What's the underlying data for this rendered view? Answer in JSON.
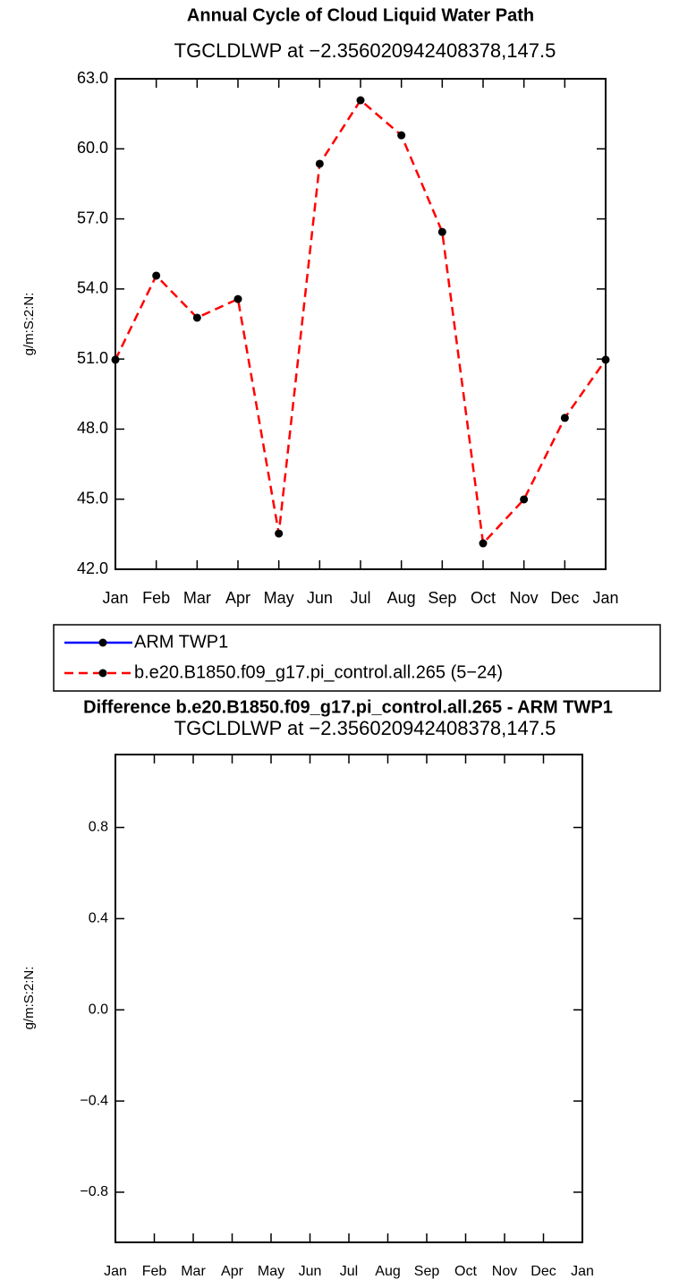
{
  "chart_data": [
    {
      "type": "line",
      "title": "Annual Cycle of Cloud Liquid Water Path",
      "subtitle": "TGCLDLWP at −2.356020942408378,147.5",
      "y_label": "g/m:S:2:N:",
      "categories": [
        "Jan",
        "Feb",
        "Mar",
        "Apr",
        "May",
        "Jun",
        "Jul",
        "Aug",
        "Sep",
        "Oct",
        "Nov",
        "Dec",
        "Jan"
      ],
      "series": [
        {
          "name": "ARM TWP1",
          "color": "#0000ff",
          "values": [
            null,
            null,
            null,
            null,
            null,
            null,
            null,
            null,
            null,
            null,
            null,
            null,
            null
          ]
        },
        {
          "name": "b.e20.B1850.f09_g17.pi_control.all.265 (5−24)",
          "color": "#ff0000",
          "values": [
            50.97,
            54.57,
            52.77,
            53.57,
            43.53,
            59.36,
            62.08,
            60.58,
            56.44,
            43.11,
            44.99,
            48.48,
            50.97
          ]
        }
      ],
      "ylim": [
        42,
        63
      ],
      "yticks": [
        {
          "value": 42,
          "label": "42.0"
        },
        {
          "value": 45,
          "label": "45.0"
        },
        {
          "value": 48,
          "label": "48.0"
        },
        {
          "value": 51,
          "label": "51.0"
        },
        {
          "value": 54,
          "label": "54.0"
        },
        {
          "value": 57,
          "label": "57.0"
        },
        {
          "value": 60,
          "label": "60.0"
        },
        {
          "value": 63,
          "label": "63.0"
        }
      ]
    },
    {
      "type": "line",
      "title": "Difference b.e20.B1850.f09_g17.pi_control.all.265 - ARM TWP1",
      "subtitle": "TGCLDLWP at −2.356020942408378,147.5",
      "y_label": "g/m:S:2:N:",
      "categories": [
        "Jan",
        "Feb",
        "Mar",
        "Apr",
        "May",
        "Jun",
        "Jul",
        "Aug",
        "Sep",
        "Oct",
        "Nov",
        "Dec",
        "Jan"
      ],
      "series": [],
      "ylim": [
        -1.02,
        1.12
      ],
      "yticks": [
        {
          "value": -0.8,
          "label": "−0.8"
        },
        {
          "value": -0.4,
          "label": "−0.4"
        },
        {
          "value": 0,
          "label": "0.0"
        },
        0.4,
        0.8
      ]
    }
  ]
}
